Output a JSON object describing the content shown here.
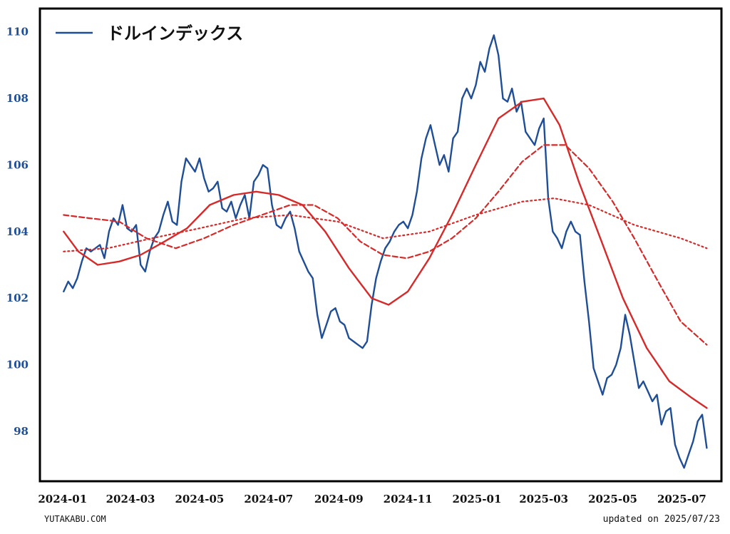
{
  "footer": {
    "site": "YUTAKABU.COM",
    "updated": "updated on 2025/07/23"
  },
  "chart_data": {
    "type": "line",
    "title": "",
    "xlabel": "",
    "ylabel": "",
    "x_range": [
      "2023-12-12",
      "2025-08-05"
    ],
    "ylim": [
      96.5,
      110.7
    ],
    "grid": false,
    "legend_position": "top-left",
    "x_ticks": [
      "2024-01",
      "2024-03",
      "2024-05",
      "2024-07",
      "2024-09",
      "2024-11",
      "2025-01",
      "2025-03",
      "2025-05",
      "2025-07"
    ],
    "y_ticks": [
      98,
      100,
      102,
      104,
      106,
      108,
      110
    ],
    "series": [
      {
        "name": "ドルインデックス",
        "color": "#1f4e96",
        "style": "solid",
        "points": [
          [
            "2024-01-02",
            102.2
          ],
          [
            "2024-01-06",
            102.5
          ],
          [
            "2024-01-10",
            102.3
          ],
          [
            "2024-01-14",
            102.6
          ],
          [
            "2024-01-18",
            103.1
          ],
          [
            "2024-01-22",
            103.5
          ],
          [
            "2024-01-26",
            103.4
          ],
          [
            "2024-01-30",
            103.5
          ],
          [
            "2024-02-03",
            103.6
          ],
          [
            "2024-02-07",
            103.2
          ],
          [
            "2024-02-11",
            104.0
          ],
          [
            "2024-02-15",
            104.4
          ],
          [
            "2024-02-19",
            104.2
          ],
          [
            "2024-02-23",
            104.8
          ],
          [
            "2024-02-27",
            104.1
          ],
          [
            "2024-03-02",
            104.0
          ],
          [
            "2024-03-06",
            104.2
          ],
          [
            "2024-03-10",
            103.0
          ],
          [
            "2024-03-14",
            102.8
          ],
          [
            "2024-03-18",
            103.4
          ],
          [
            "2024-03-22",
            103.8
          ],
          [
            "2024-03-26",
            104.0
          ],
          [
            "2024-03-30",
            104.5
          ],
          [
            "2024-04-03",
            104.9
          ],
          [
            "2024-04-07",
            104.3
          ],
          [
            "2024-04-11",
            104.2
          ],
          [
            "2024-04-15",
            105.5
          ],
          [
            "2024-04-19",
            106.2
          ],
          [
            "2024-04-23",
            106.0
          ],
          [
            "2024-04-27",
            105.8
          ],
          [
            "2024-05-01",
            106.2
          ],
          [
            "2024-05-05",
            105.6
          ],
          [
            "2024-05-09",
            105.2
          ],
          [
            "2024-05-13",
            105.3
          ],
          [
            "2024-05-17",
            105.5
          ],
          [
            "2024-05-21",
            104.7
          ],
          [
            "2024-05-25",
            104.6
          ],
          [
            "2024-05-29",
            104.9
          ],
          [
            "2024-06-02",
            104.4
          ],
          [
            "2024-06-06",
            104.8
          ],
          [
            "2024-06-10",
            105.1
          ],
          [
            "2024-06-14",
            104.4
          ],
          [
            "2024-06-18",
            105.5
          ],
          [
            "2024-06-22",
            105.7
          ],
          [
            "2024-06-26",
            106.0
          ],
          [
            "2024-06-30",
            105.9
          ],
          [
            "2024-07-04",
            104.8
          ],
          [
            "2024-07-08",
            104.2
          ],
          [
            "2024-07-12",
            104.1
          ],
          [
            "2024-07-16",
            104.4
          ],
          [
            "2024-07-20",
            104.6
          ],
          [
            "2024-07-24",
            104.1
          ],
          [
            "2024-07-28",
            103.4
          ],
          [
            "2024-08-01",
            103.1
          ],
          [
            "2024-08-05",
            102.8
          ],
          [
            "2024-08-09",
            102.6
          ],
          [
            "2024-08-13",
            101.5
          ],
          [
            "2024-08-17",
            100.8
          ],
          [
            "2024-08-21",
            101.2
          ],
          [
            "2024-08-25",
            101.6
          ],
          [
            "2024-08-29",
            101.7
          ],
          [
            "2024-09-02",
            101.3
          ],
          [
            "2024-09-06",
            101.2
          ],
          [
            "2024-09-10",
            100.8
          ],
          [
            "2024-09-14",
            100.7
          ],
          [
            "2024-09-18",
            100.6
          ],
          [
            "2024-09-22",
            100.5
          ],
          [
            "2024-09-26",
            100.7
          ],
          [
            "2024-09-30",
            101.8
          ],
          [
            "2024-10-04",
            102.6
          ],
          [
            "2024-10-08",
            103.1
          ],
          [
            "2024-10-12",
            103.5
          ],
          [
            "2024-10-16",
            103.7
          ],
          [
            "2024-10-20",
            104.0
          ],
          [
            "2024-10-24",
            104.2
          ],
          [
            "2024-10-28",
            104.3
          ],
          [
            "2024-11-01",
            104.1
          ],
          [
            "2024-11-05",
            104.5
          ],
          [
            "2024-11-09",
            105.2
          ],
          [
            "2024-11-13",
            106.2
          ],
          [
            "2024-11-17",
            106.8
          ],
          [
            "2024-11-21",
            107.2
          ],
          [
            "2024-11-25",
            106.6
          ],
          [
            "2024-11-29",
            106.0
          ],
          [
            "2024-12-03",
            106.3
          ],
          [
            "2024-12-07",
            105.8
          ],
          [
            "2024-12-11",
            106.8
          ],
          [
            "2024-12-15",
            107.0
          ],
          [
            "2024-12-19",
            108.0
          ],
          [
            "2024-12-23",
            108.3
          ],
          [
            "2024-12-27",
            108.0
          ],
          [
            "2024-12-31",
            108.4
          ],
          [
            "2025-01-04",
            109.1
          ],
          [
            "2025-01-08",
            108.8
          ],
          [
            "2025-01-12",
            109.5
          ],
          [
            "2025-01-16",
            109.9
          ],
          [
            "2025-01-20",
            109.3
          ],
          [
            "2025-01-24",
            108.0
          ],
          [
            "2025-01-28",
            107.9
          ],
          [
            "2025-02-01",
            108.3
          ],
          [
            "2025-02-05",
            107.6
          ],
          [
            "2025-02-09",
            107.9
          ],
          [
            "2025-02-13",
            107.0
          ],
          [
            "2025-02-17",
            106.8
          ],
          [
            "2025-02-21",
            106.6
          ],
          [
            "2025-02-25",
            107.1
          ],
          [
            "2025-03-01",
            107.4
          ],
          [
            "2025-03-05",
            105.0
          ],
          [
            "2025-03-09",
            104.0
          ],
          [
            "2025-03-13",
            103.8
          ],
          [
            "2025-03-17",
            103.5
          ],
          [
            "2025-03-21",
            104.0
          ],
          [
            "2025-03-25",
            104.3
          ],
          [
            "2025-03-29",
            104.0
          ],
          [
            "2025-04-02",
            103.9
          ],
          [
            "2025-04-06",
            102.5
          ],
          [
            "2025-04-10",
            101.3
          ],
          [
            "2025-04-14",
            99.9
          ],
          [
            "2025-04-18",
            99.5
          ],
          [
            "2025-04-22",
            99.1
          ],
          [
            "2025-04-26",
            99.6
          ],
          [
            "2025-04-30",
            99.7
          ],
          [
            "2025-05-04",
            100.0
          ],
          [
            "2025-05-08",
            100.5
          ],
          [
            "2025-05-12",
            101.5
          ],
          [
            "2025-05-16",
            100.9
          ],
          [
            "2025-05-20",
            100.1
          ],
          [
            "2025-05-24",
            99.3
          ],
          [
            "2025-05-28",
            99.5
          ],
          [
            "2025-06-01",
            99.2
          ],
          [
            "2025-06-05",
            98.9
          ],
          [
            "2025-06-09",
            99.1
          ],
          [
            "2025-06-13",
            98.2
          ],
          [
            "2025-06-17",
            98.6
          ],
          [
            "2025-06-21",
            98.7
          ],
          [
            "2025-06-25",
            97.6
          ],
          [
            "2025-06-29",
            97.2
          ],
          [
            "2025-07-03",
            96.9
          ],
          [
            "2025-07-07",
            97.3
          ],
          [
            "2025-07-11",
            97.7
          ],
          [
            "2025-07-15",
            98.3
          ],
          [
            "2025-07-19",
            98.5
          ],
          [
            "2025-07-23",
            97.5
          ]
        ]
      },
      {
        "name": "",
        "color": "#d62a2a",
        "style": "solid",
        "points": [
          [
            "2024-01-02",
            104.0
          ],
          [
            "2024-01-15",
            103.4
          ],
          [
            "2024-02-01",
            103.0
          ],
          [
            "2024-02-20",
            103.1
          ],
          [
            "2024-03-10",
            103.3
          ],
          [
            "2024-03-31",
            103.7
          ],
          [
            "2024-04-20",
            104.1
          ],
          [
            "2024-05-10",
            104.8
          ],
          [
            "2024-05-31",
            105.1
          ],
          [
            "2024-06-20",
            105.2
          ],
          [
            "2024-07-10",
            105.1
          ],
          [
            "2024-07-31",
            104.8
          ],
          [
            "2024-08-20",
            104.0
          ],
          [
            "2024-09-10",
            102.9
          ],
          [
            "2024-09-30",
            102.0
          ],
          [
            "2024-10-15",
            101.8
          ],
          [
            "2024-11-01",
            102.2
          ],
          [
            "2024-11-20",
            103.2
          ],
          [
            "2024-12-10",
            104.5
          ],
          [
            "2024-12-31",
            106.0
          ],
          [
            "2025-01-20",
            107.4
          ],
          [
            "2025-02-10",
            107.9
          ],
          [
            "2025-03-01",
            108.0
          ],
          [
            "2025-03-15",
            107.2
          ],
          [
            "2025-04-01",
            105.5
          ],
          [
            "2025-04-20",
            103.8
          ],
          [
            "2025-05-10",
            102.0
          ],
          [
            "2025-05-31",
            100.5
          ],
          [
            "2025-06-20",
            99.5
          ],
          [
            "2025-07-10",
            99.0
          ],
          [
            "2025-07-23",
            98.7
          ]
        ]
      },
      {
        "name": "",
        "color": "#d62a2a",
        "style": "dashed",
        "points": [
          [
            "2024-01-02",
            104.5
          ],
          [
            "2024-01-25",
            104.4
          ],
          [
            "2024-02-20",
            104.3
          ],
          [
            "2024-03-15",
            103.8
          ],
          [
            "2024-04-10",
            103.5
          ],
          [
            "2024-05-05",
            103.8
          ],
          [
            "2024-05-31",
            104.2
          ],
          [
            "2024-06-25",
            104.5
          ],
          [
            "2024-07-20",
            104.8
          ],
          [
            "2024-08-10",
            104.8
          ],
          [
            "2024-08-31",
            104.4
          ],
          [
            "2024-09-20",
            103.7
          ],
          [
            "2024-10-10",
            103.3
          ],
          [
            "2024-10-31",
            103.2
          ],
          [
            "2024-11-20",
            103.4
          ],
          [
            "2024-12-10",
            103.8
          ],
          [
            "2024-12-31",
            104.4
          ],
          [
            "2025-01-20",
            105.2
          ],
          [
            "2025-02-10",
            106.1
          ],
          [
            "2025-03-01",
            106.6
          ],
          [
            "2025-03-20",
            106.6
          ],
          [
            "2025-04-10",
            105.9
          ],
          [
            "2025-05-01",
            104.9
          ],
          [
            "2025-05-20",
            103.8
          ],
          [
            "2025-06-10",
            102.5
          ],
          [
            "2025-06-30",
            101.3
          ],
          [
            "2025-07-23",
            100.6
          ]
        ]
      },
      {
        "name": "",
        "color": "#d62a2a",
        "style": "dotted",
        "points": [
          [
            "2024-01-02",
            103.4
          ],
          [
            "2024-02-10",
            103.5
          ],
          [
            "2024-03-20",
            103.8
          ],
          [
            "2024-05-01",
            104.1
          ],
          [
            "2024-06-10",
            104.4
          ],
          [
            "2024-07-20",
            104.5
          ],
          [
            "2024-08-31",
            104.3
          ],
          [
            "2024-10-10",
            103.8
          ],
          [
            "2024-11-20",
            104.0
          ],
          [
            "2024-12-31",
            104.5
          ],
          [
            "2025-02-10",
            104.9
          ],
          [
            "2025-03-10",
            105.0
          ],
          [
            "2025-04-10",
            104.8
          ],
          [
            "2025-05-20",
            104.2
          ],
          [
            "2025-06-30",
            103.8
          ],
          [
            "2025-07-23",
            103.5
          ]
        ]
      }
    ]
  }
}
